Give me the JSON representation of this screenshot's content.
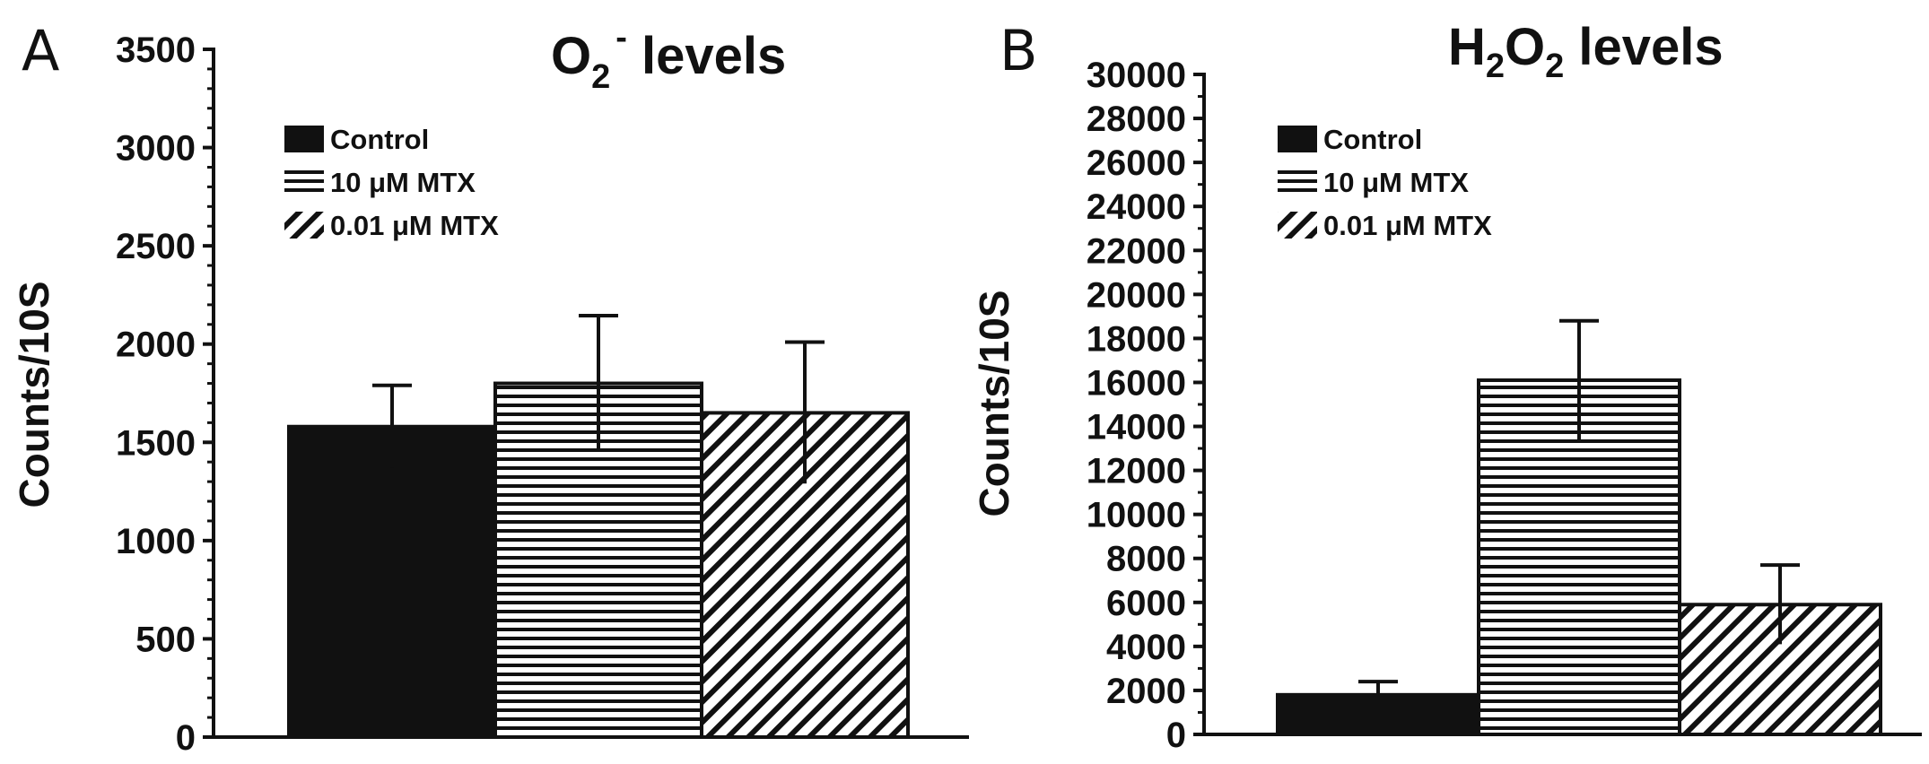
{
  "colors": {
    "ink": "#111111",
    "background": "#ffffff"
  },
  "series_styles": [
    {
      "name": "Control",
      "pattern": "solid"
    },
    {
      "name": "10 μM MTX",
      "pattern": "horizontal-lines"
    },
    {
      "name": "0.01 μM MTX",
      "pattern": "diagonal-lines"
    }
  ],
  "chart_data": [
    {
      "type": "bar",
      "panel": "A",
      "title_main": "O",
      "title_sub": "2",
      "title_sup": "-",
      "title_rest": " levels",
      "ylabel": "Counts/10S",
      "ylim": [
        0,
        3500
      ],
      "yticks": [
        "0",
        "500",
        "1000",
        "1500",
        "2000",
        "2500",
        "3000",
        "3500"
      ],
      "categories": [
        "Control",
        "10 μM MTX",
        "0.01 μM MTX"
      ],
      "values": [
        1580,
        1800,
        1650
      ],
      "errors": [
        210,
        345,
        360
      ],
      "legend_position": "top-left"
    },
    {
      "type": "bar",
      "panel": "B",
      "title_main": "H",
      "title_sub": "2",
      "title_main2": "O",
      "title_sub2": "2",
      "title_rest": " levels",
      "ylabel": "Counts/10S",
      "ylim": [
        0,
        30000
      ],
      "yticks": [
        "0",
        "2000",
        "4000",
        "6000",
        "8000",
        "10000",
        "12000",
        "14000",
        "16000",
        "18000",
        "20000",
        "22000",
        "24000",
        "26000",
        "28000",
        "30000"
      ],
      "categories": [
        "Control",
        "10 μM MTX",
        "0.01 μM MTX"
      ],
      "values": [
        1800,
        16100,
        5900
      ],
      "errors": [
        600,
        2700,
        1800
      ],
      "legend_position": "top-left"
    }
  ]
}
